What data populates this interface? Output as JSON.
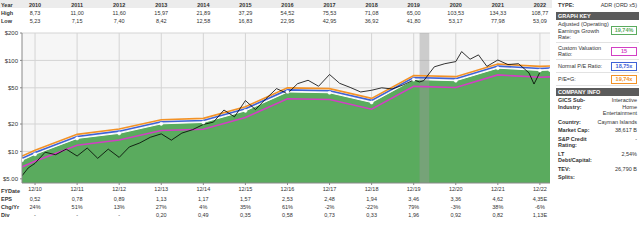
{
  "header_table": {
    "rows": [
      {
        "label": "Year",
        "values": [
          "2010",
          "2011",
          "2012",
          "2013",
          "2014",
          "2015",
          "2016",
          "2017",
          "2018",
          "2019",
          "2020",
          "2021",
          "2022"
        ]
      },
      {
        "label": "High",
        "values": [
          "8,73",
          "11,00",
          "11,60",
          "15,97",
          "21,89",
          "37,29",
          "54,52",
          "75,53",
          "71,08",
          "65,00",
          "103,53",
          "134,33",
          "108,77"
        ]
      },
      {
        "label": "Low",
        "values": [
          "5,23",
          "7,15",
          "7,40",
          "8,42",
          "12,58",
          "16,83",
          "22,95",
          "42,95",
          "36,92",
          "41,80",
          "53,17",
          "77,98",
          "53,09"
        ]
      }
    ]
  },
  "chart_data": {
    "type": "line",
    "log": "y",
    "grid": true,
    "xlabel": "FYDate",
    "xlim": [
      2010.65,
      2023.2
    ],
    "xticks": [
      {
        "value": 2010.96,
        "label": "12/10"
      },
      {
        "value": 2011.96,
        "label": "12/11"
      },
      {
        "value": 2012.96,
        "label": "12/12"
      },
      {
        "value": 2013.96,
        "label": "12/13"
      },
      {
        "value": 2014.96,
        "label": "12/14"
      },
      {
        "value": 2015.96,
        "label": "12/15"
      },
      {
        "value": 2016.96,
        "label": "12/16"
      },
      {
        "value": 2017.96,
        "label": "12/17"
      },
      {
        "value": 2018.96,
        "label": "12/18"
      },
      {
        "value": 2019.96,
        "label": "12/19"
      },
      {
        "value": 2020.96,
        "label": "12/20"
      },
      {
        "value": 2021.96,
        "label": "12/21"
      },
      {
        "value": 2022.96,
        "label": "12/22"
      }
    ],
    "ylim": [
      4.5,
      200
    ],
    "yticks": [
      {
        "value": 200,
        "label": "$200"
      },
      {
        "value": 100,
        "label": "$100"
      },
      {
        "value": 50,
        "label": "$50"
      },
      {
        "value": 20,
        "label": "$20"
      },
      {
        "value": 10,
        "label": "$10"
      },
      {
        "value": 5,
        "label": "$5.00"
      }
    ],
    "shaded_x": [
      [
        2020.1,
        2020.33
      ]
    ],
    "series": [
      {
        "name": "Adjusted (Operating) Earnings Growth Rate:",
        "key_value": "19,74%",
        "type": "area",
        "color": "#5aab5e",
        "marker": "circle",
        "x": [
          2010.65,
          2010.96,
          2011.96,
          2012.96,
          2013.96,
          2014.96,
          2015.96,
          2016.96,
          2017.96,
          2018.96,
          2019.96,
          2020.96,
          2021.96,
          2022.96,
          2023.2
        ],
        "values": [
          8.0,
          9.3,
          13.9,
          15.8,
          20.1,
          20.8,
          27.9,
          45.0,
          44.1,
          34.5,
          61.6,
          59.8,
          82.2,
          77.4,
          78.3
        ]
      },
      {
        "name": "Custom Valuation Ratio:",
        "key_value": "15",
        "type": "line",
        "color": "#d23fc4",
        "x": [
          2010.65,
          2010.96,
          2011.96,
          2012.96,
          2013.96,
          2014.96,
          2015.96,
          2016.96,
          2017.96,
          2018.96,
          2019.96,
          2020.96,
          2021.96,
          2022.96,
          2023.2
        ],
        "values": [
          6.75,
          7.8,
          11.7,
          13.35,
          16.95,
          17.55,
          23.55,
          37.95,
          37.2,
          29.1,
          51.9,
          50.4,
          69.3,
          65.25,
          66
        ]
      },
      {
        "name": "Normal P/E Ratio:",
        "key_value": "18,75x",
        "type": "line",
        "color": "#3f62d6",
        "x": [
          2010.65,
          2010.96,
          2011.96,
          2012.96,
          2013.96,
          2014.96,
          2015.96,
          2016.96,
          2017.96,
          2018.96,
          2019.96,
          2020.96,
          2021.96,
          2022.96,
          2023.2
        ],
        "values": [
          8.4,
          9.75,
          14.6,
          16.7,
          21.2,
          21.9,
          29.4,
          47.4,
          46.5,
          36.4,
          64.9,
          63.0,
          86.6,
          81.6,
          82.5
        ]
      },
      {
        "name": "P/E=G:",
        "key_value": "19,74x",
        "type": "line",
        "color": "#f39226",
        "x": [
          2010.65,
          2010.96,
          2011.96,
          2012.96,
          2013.96,
          2014.96,
          2015.96,
          2016.96,
          2017.96,
          2018.96,
          2019.96,
          2020.96,
          2021.96,
          2022.96,
          2023.2
        ],
        "values": [
          8.9,
          10.3,
          15.4,
          17.6,
          22.3,
          23.1,
          31.0,
          49.9,
          49.0,
          38.3,
          68.3,
          66.3,
          91.2,
          85.9,
          86.9
        ]
      },
      {
        "type": "line",
        "color": "#000000",
        "x": [
          2010.65,
          2010.8,
          2010.96,
          2011.2,
          2011.45,
          2011.7,
          2011.96,
          2012.2,
          2012.45,
          2012.7,
          2012.96,
          2013.2,
          2013.45,
          2013.7,
          2013.96,
          2014.2,
          2014.45,
          2014.7,
          2014.96,
          2015.2,
          2015.45,
          2015.7,
          2015.96,
          2016.2,
          2016.45,
          2016.7,
          2016.96,
          2017.2,
          2017.45,
          2017.7,
          2017.96,
          2018.2,
          2018.45,
          2018.7,
          2018.96,
          2019.2,
          2019.45,
          2019.7,
          2019.96,
          2020.1,
          2020.2,
          2020.45,
          2020.7,
          2020.96,
          2021.1,
          2021.3,
          2021.5,
          2021.7,
          2021.96,
          2022.2,
          2022.45,
          2022.7,
          2022.82,
          2022.96
        ],
        "values": [
          5.4,
          6.6,
          7.4,
          9.8,
          9.2,
          10.6,
          8.9,
          10.9,
          8.4,
          10.6,
          8.6,
          11.2,
          12.4,
          14.3,
          15.6,
          13.3,
          15.9,
          17.3,
          19.8,
          21.0,
          28.5,
          24.0,
          36.2,
          28.8,
          38.0,
          49.0,
          43.2,
          55.5,
          60.5,
          52.0,
          70.0,
          56.0,
          50.5,
          45.0,
          47.0,
          50.0,
          48.5,
          53.5,
          61.0,
          58.0,
          60.0,
          85.0,
          92.0,
          97.0,
          125,
          103,
          115,
          86,
          101,
          90,
          92,
          73,
          55,
          74
        ]
      }
    ]
  },
  "footer_table": {
    "rows": [
      {
        "label": "EPS",
        "values": [
          "0,52",
          "0,78",
          "0,89",
          "1,13",
          "1,17",
          "1,57",
          "2,53",
          "2,48",
          "1,94",
          "3,46",
          "3,36",
          "4,62",
          "4,35E"
        ]
      },
      {
        "label": "Chg/Yr",
        "values": [
          "24%",
          "51%",
          "13%",
          "27%",
          "4%",
          "35%",
          "61%",
          "-2%",
          "-22%",
          "79%",
          "-3%",
          "38%",
          "-6%"
        ]
      },
      {
        "label": "Div",
        "values": [
          "-",
          "-",
          "-",
          "0,20",
          "0,49",
          "0,35",
          "0,58",
          "0,73",
          "0,33",
          "1,96",
          "0,92",
          "0,82",
          "1,13E"
        ]
      }
    ]
  },
  "side_panel": {
    "type_label": "TYPE:",
    "type_value": "ADR (ORD x5)",
    "graph_key_title": "GRAPH KEY",
    "company_info_title": "COMPANY INFO",
    "company_info": [
      {
        "label": "GICS Sub-Industry:",
        "value": "Interactive Home Entertainment"
      },
      {
        "label": "Country:",
        "value": "Cayman Islands"
      },
      {
        "label": "Market Cap:",
        "value": "38,617 B"
      },
      {
        "label": "S&P Credit Rating:",
        "value": "-"
      },
      {
        "label": "LT Debt/Capital:",
        "value": "2,54%"
      },
      {
        "label": "TEV:",
        "value": "26,790 B"
      },
      {
        "label": "Splits:"
      }
    ]
  }
}
